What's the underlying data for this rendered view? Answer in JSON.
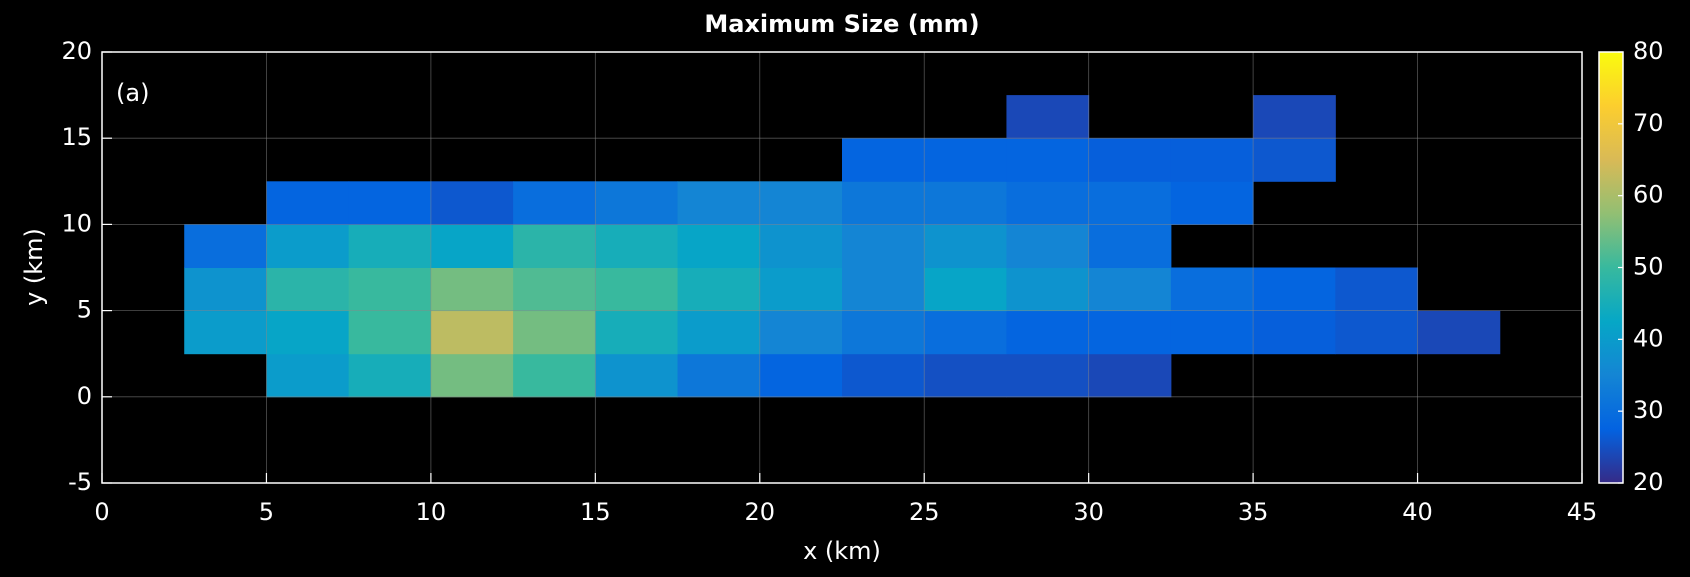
{
  "chart_data": {
    "type": "heatmap",
    "title": "Maximum Size (mm)",
    "xlabel": "x (km)",
    "ylabel": "y (km)",
    "annotation": "(a)",
    "x": [
      1.25,
      3.75,
      6.25,
      8.75,
      11.25,
      13.75,
      16.25,
      18.75,
      21.25,
      23.75,
      26.25,
      28.75,
      31.25,
      33.75,
      36.25,
      38.75,
      41.25,
      43.75
    ],
    "y": [
      -3.75,
      -1.25,
      1.25,
      3.75,
      6.25,
      8.75,
      11.25,
      13.75,
      16.25,
      18.75
    ],
    "values": [
      [
        null,
        null,
        null,
        null,
        null,
        null,
        null,
        null,
        null,
        null,
        null,
        null,
        null,
        null,
        null,
        null,
        null,
        null
      ],
      [
        null,
        null,
        null,
        null,
        null,
        null,
        null,
        null,
        null,
        null,
        null,
        null,
        null,
        null,
        null,
        null,
        null,
        null
      ],
      [
        null,
        null,
        40,
        45,
        55,
        50,
        38,
        32,
        28,
        26,
        25,
        25,
        24,
        null,
        null,
        null,
        null,
        null
      ],
      [
        null,
        40,
        42,
        50,
        62,
        55,
        45,
        40,
        35,
        32,
        30,
        28,
        28,
        28,
        27,
        26,
        24,
        null
      ],
      [
        null,
        38,
        48,
        50,
        55,
        52,
        50,
        45,
        40,
        35,
        42,
        38,
        35,
        30,
        28,
        26,
        null,
        null
      ],
      [
        null,
        30,
        40,
        45,
        42,
        48,
        45,
        42,
        38,
        35,
        38,
        35,
        30,
        null,
        null,
        null,
        null,
        null
      ],
      [
        null,
        null,
        28,
        28,
        26,
        30,
        32,
        35,
        35,
        32,
        32,
        30,
        30,
        28,
        null,
        null,
        null,
        null
      ],
      [
        null,
        null,
        null,
        null,
        null,
        null,
        null,
        null,
        null,
        28,
        28,
        28,
        27,
        27,
        26,
        null,
        null,
        null
      ],
      [
        null,
        null,
        null,
        null,
        null,
        null,
        null,
        null,
        null,
        null,
        null,
        24,
        null,
        null,
        24,
        null,
        null,
        null
      ],
      [
        null,
        null,
        null,
        null,
        null,
        null,
        null,
        null,
        null,
        null,
        null,
        null,
        null,
        null,
        null,
        null,
        null,
        null
      ]
    ],
    "xlim": [
      0,
      45
    ],
    "xticks": [
      0,
      5,
      10,
      15,
      20,
      25,
      30,
      35,
      40,
      45
    ],
    "ylim": [
      -5,
      20
    ],
    "yticks": [
      -5,
      0,
      5,
      10,
      15,
      20
    ],
    "clim": [
      20,
      80
    ],
    "cticks": [
      20,
      30,
      40,
      50,
      60,
      70,
      80
    ],
    "colormap": [
      "#352a87",
      "#0363e1",
      "#1485d4",
      "#06a7c6",
      "#38b99e",
      "#92bf73",
      "#d9ba56",
      "#fcce2e",
      "#f9fb0e"
    ],
    "grid": true
  }
}
